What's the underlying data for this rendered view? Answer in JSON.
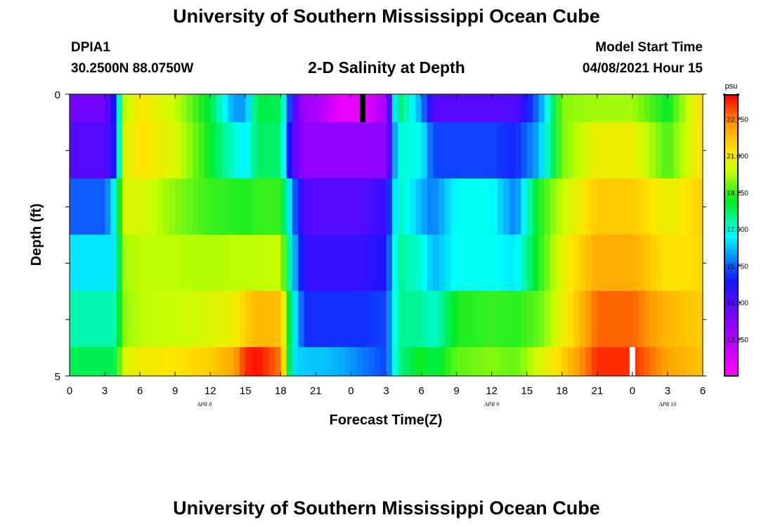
{
  "header": {
    "title": "University of Southern Mississippi Ocean Cube",
    "station": "DPIA1",
    "lat_lon": "30.2500N  88.0750W",
    "subtitle": "2-D Salinity at Depth",
    "model_start_label": "Model Start Time",
    "model_start_value": "04/08/2021 Hour 15"
  },
  "footer": {
    "title": "University of Southern Mississippi Ocean Cube"
  },
  "chart_data": {
    "type": "heatmap",
    "title": "2-D Salinity at Depth",
    "xlabel": "Forecast Time(Z)",
    "ylabel": "Depth (ft)",
    "x_range_hours": [
      0,
      54
    ],
    "y_range": [
      0,
      5
    ],
    "y_tick_labels": [
      "0",
      "5"
    ],
    "x_tick_labels": [
      "0",
      "3",
      "6",
      "9",
      "12",
      "15",
      "18",
      "21",
      "0",
      "3",
      "6",
      "9",
      "12",
      "15",
      "18",
      "21",
      "0",
      "3",
      "6"
    ],
    "date_labels": [
      {
        "text": "APR 8",
        "hour": 11.5
      },
      {
        "text": "APR 9",
        "hour": 36
      },
      {
        "text": "APR 10",
        "hour": 51
      }
    ],
    "colorbar": {
      "unit": "psu",
      "min": 10.5,
      "max": 23.9,
      "tick_labels": [
        "22.750",
        "21.000",
        "19.250",
        "17.500",
        "15.750",
        "14.000",
        "12.250"
      ],
      "tick_values": [
        22.75,
        21.0,
        19.25,
        17.5,
        15.75,
        14.0,
        12.25
      ]
    },
    "markers": [
      {
        "hour": 25,
        "depth_band": "top",
        "color": "#000000"
      },
      {
        "hour": 48,
        "depth_band": "bottom",
        "color": "#ffffff"
      }
    ],
    "knot_hours": [
      0,
      3,
      4,
      4.5,
      6,
      9,
      12,
      14,
      15,
      16,
      18,
      19,
      20,
      21,
      23,
      25,
      27,
      28,
      30,
      31,
      33,
      36,
      38,
      40,
      42,
      45,
      48,
      51,
      54
    ],
    "layers": [
      {
        "depth": "0.0-0.5",
        "values": [
          13.5,
          13.5,
          15.5,
          20.0,
          21.2,
          20.3,
          18.6,
          16.3,
          16.3,
          18.6,
          18.5,
          14.5,
          12.5,
          12.5,
          11.0,
          11.0,
          12.5,
          18.5,
          16.3,
          14.0,
          14.0,
          14.0,
          14.0,
          16.0,
          19.8,
          20.0,
          20.0,
          18.8,
          21.5
        ]
      },
      {
        "depth": "0.5-1.5",
        "values": [
          14.0,
          14.0,
          15.0,
          20.5,
          21.3,
          20.6,
          18.8,
          17.5,
          17.0,
          18.4,
          18.3,
          14.0,
          13.0,
          13.0,
          13.0,
          13.0,
          13.0,
          17.5,
          17.3,
          15.5,
          15.5,
          15.5,
          15.2,
          16.5,
          19.7,
          20.9,
          20.9,
          19.3,
          21.4
        ]
      },
      {
        "depth": "1.5-2.5",
        "values": [
          15.7,
          15.7,
          17.5,
          20.5,
          20.6,
          19.8,
          19.2,
          19.1,
          19.0,
          19.2,
          19.2,
          16.2,
          14.0,
          14.0,
          14.0,
          14.0,
          14.5,
          17.8,
          16.5,
          16.0,
          17.3,
          17.3,
          16.0,
          19.0,
          20.3,
          21.7,
          21.7,
          20.8,
          21.6
        ]
      },
      {
        "depth": "2.5-3.5",
        "values": [
          17.0,
          17.0,
          17.0,
          20.0,
          20.2,
          20.2,
          20.1,
          20.2,
          20.2,
          20.2,
          20.3,
          17.0,
          14.5,
          14.5,
          14.5,
          14.5,
          15.0,
          18.0,
          17.5,
          16.5,
          17.3,
          17.3,
          17.0,
          19.0,
          20.8,
          22.2,
          22.2,
          21.2,
          21.4
        ]
      },
      {
        "depth": "3.5-4.5",
        "values": [
          17.8,
          17.8,
          17.8,
          19.8,
          20.2,
          20.3,
          20.6,
          20.9,
          21.6,
          22.0,
          21.9,
          17.5,
          15.3,
          15.3,
          15.3,
          15.3,
          15.5,
          18.0,
          18.0,
          17.5,
          19.0,
          19.2,
          19.1,
          19.5,
          20.8,
          23.0,
          23.0,
          22.0,
          21.6
        ]
      },
      {
        "depth": "4.5-5.0",
        "values": [
          18.5,
          18.5,
          18.5,
          20.5,
          21.0,
          21.2,
          21.6,
          22.3,
          23.5,
          23.8,
          22.8,
          17.0,
          16.7,
          16.7,
          16.5,
          16.0,
          15.5,
          18.0,
          19.0,
          18.5,
          19.5,
          19.8,
          19.5,
          20.5,
          21.5,
          23.5,
          23.5,
          22.3,
          21.8
        ]
      }
    ]
  }
}
